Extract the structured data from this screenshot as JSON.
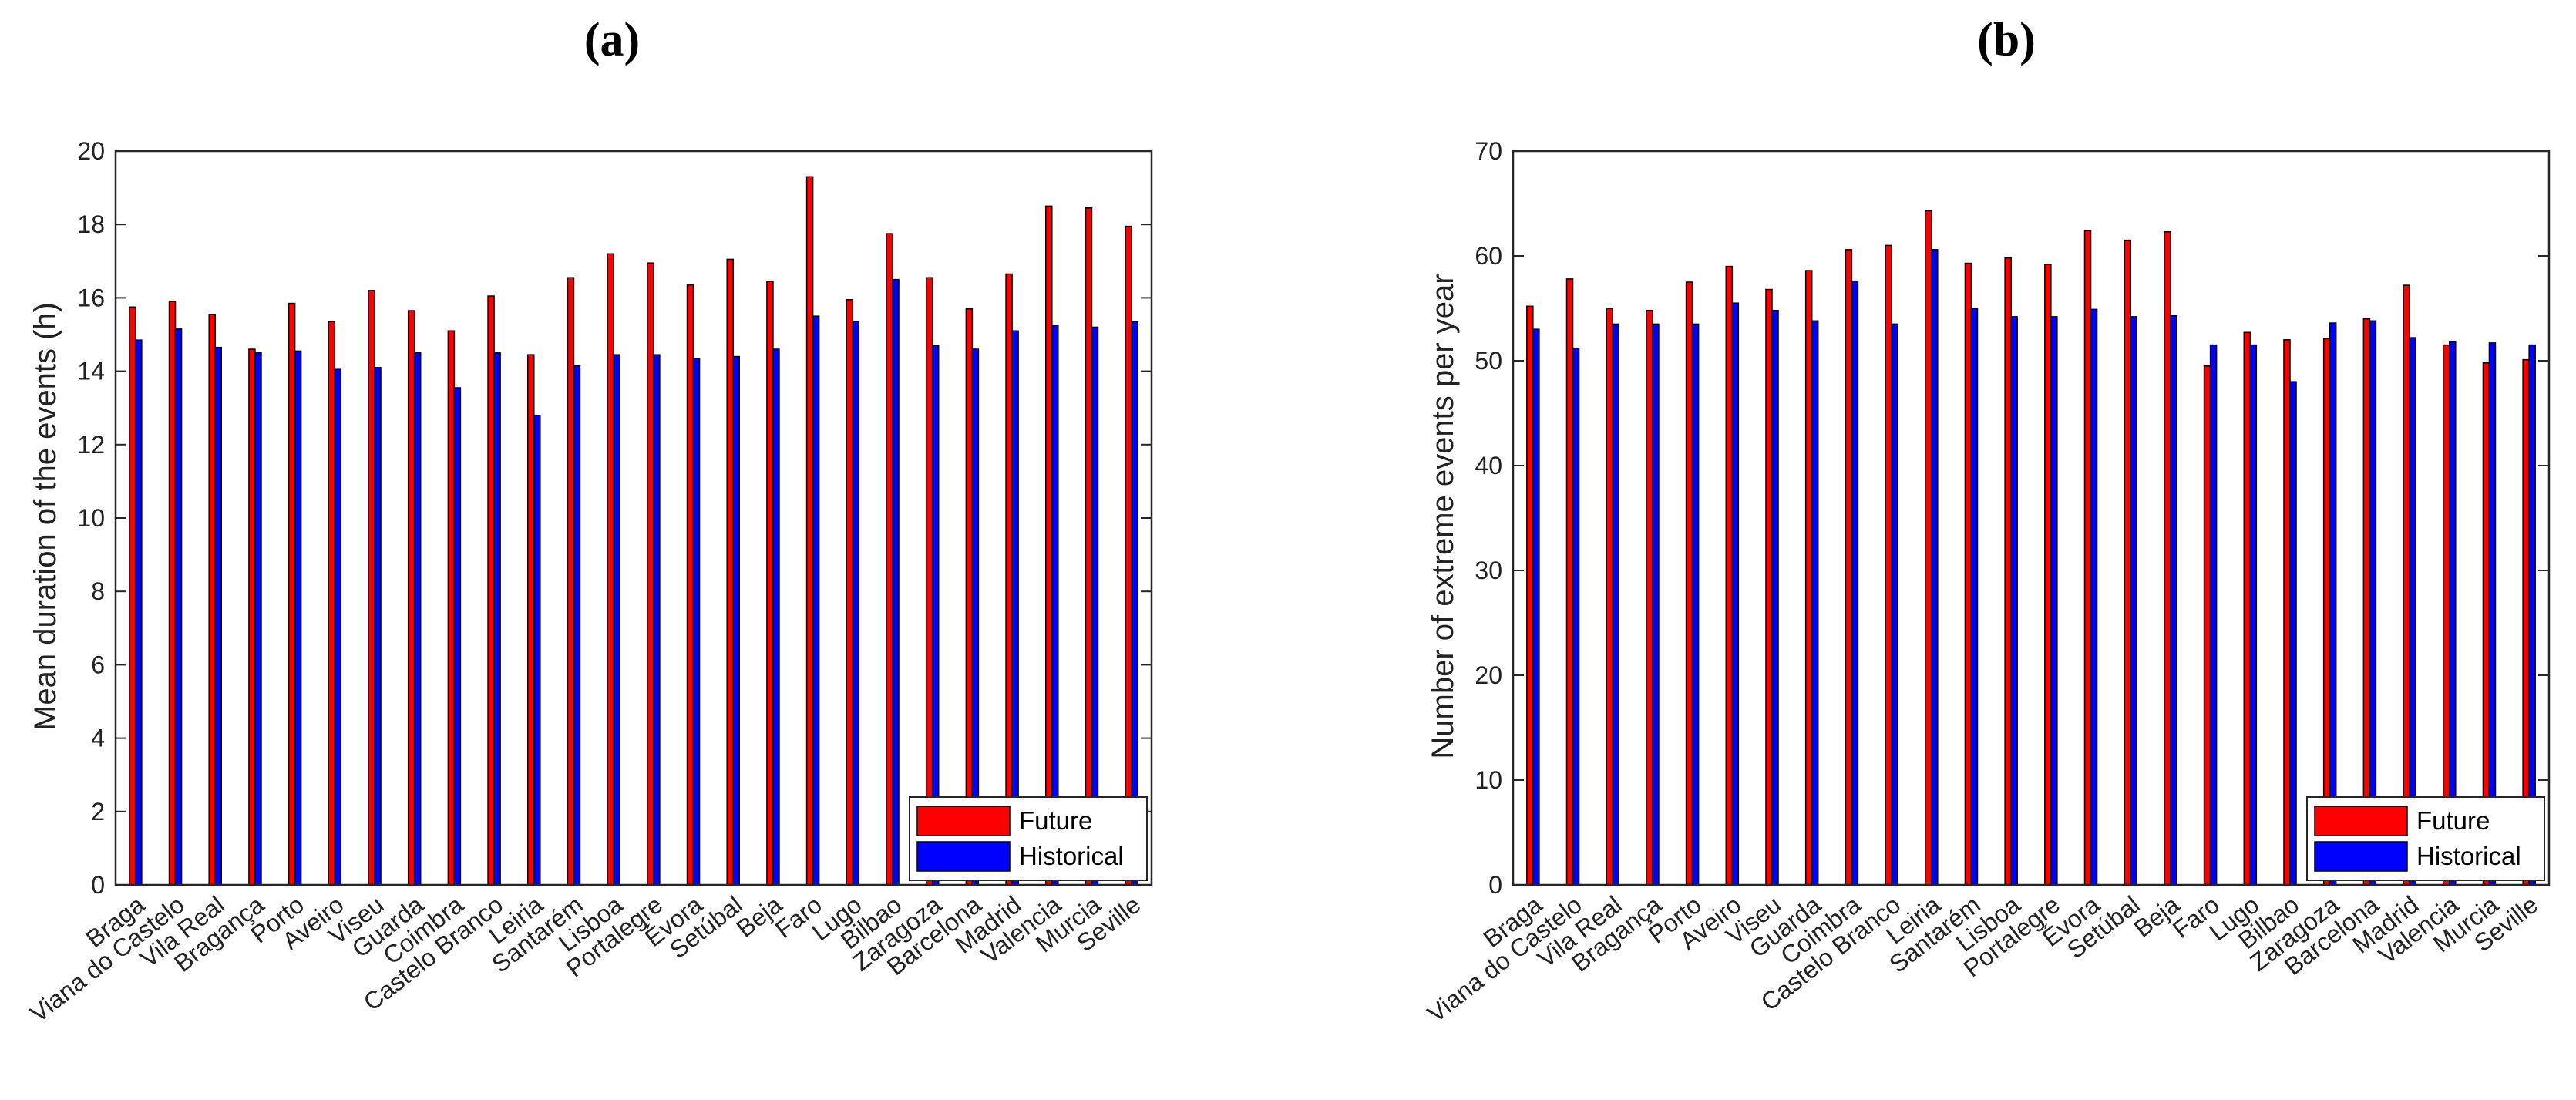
{
  "chart_data": [
    {
      "type": "bar",
      "title": "(a)",
      "ylabel": "Mean duration of the events (h)",
      "xlabel": "",
      "ylim": [
        0,
        20
      ],
      "yticks": [
        0,
        2,
        4,
        6,
        8,
        10,
        12,
        14,
        16,
        18,
        20
      ],
      "grid": false,
      "legend_position": "bottom-right",
      "categories": [
        "Braga",
        "Viana do Castelo",
        "Vila Real",
        "Bragança",
        "Porto",
        "Aveiro",
        "Viseu",
        "Guarda",
        "Coimbra",
        "Castelo Branco",
        "Leiria",
        "Santarém",
        "Lisboa",
        "Portalegre",
        "Évora",
        "Setúbal",
        "Beja",
        "Faro",
        "Lugo",
        "Bilbao",
        "Zaragoza",
        "Barcelona",
        "Madrid",
        "Valencia",
        "Murcia",
        "Seville"
      ],
      "series": [
        {
          "name": "Future",
          "color": "#ff0000",
          "values": [
            15.75,
            15.9,
            15.55,
            14.6,
            15.85,
            15.35,
            16.2,
            15.65,
            15.1,
            16.05,
            14.45,
            16.55,
            17.2,
            16.95,
            16.35,
            17.05,
            16.45,
            19.3,
            15.95,
            17.75,
            16.55,
            15.7,
            16.65,
            18.5,
            18.45,
            17.95
          ]
        },
        {
          "name": "Historical",
          "color": "#0000ff",
          "values": [
            14.85,
            15.15,
            14.65,
            14.5,
            14.55,
            14.05,
            14.1,
            14.5,
            13.55,
            14.5,
            12.8,
            14.15,
            14.45,
            14.45,
            14.35,
            14.4,
            14.6,
            15.5,
            15.35,
            16.5,
            14.7,
            14.6,
            15.1,
            15.25,
            15.2,
            15.35
          ]
        }
      ]
    },
    {
      "type": "bar",
      "title": "(b)",
      "ylabel": "Number of extreme events per year",
      "xlabel": "",
      "ylim": [
        0,
        70
      ],
      "yticks": [
        0,
        10,
        20,
        30,
        40,
        50,
        60,
        70
      ],
      "grid": false,
      "legend_position": "bottom-right",
      "categories": [
        "Braga",
        "Viana do Castelo",
        "Vila Real",
        "Bragança",
        "Porto",
        "Aveiro",
        "Viseu",
        "Guarda",
        "Coimbra",
        "Castelo Branco",
        "Leiria",
        "Santarém",
        "Lisboa",
        "Portalegre",
        "Évora",
        "Setúbal",
        "Beja",
        "Faro",
        "Lugo",
        "Bilbao",
        "Zaragoza",
        "Barcelona",
        "Madrid",
        "Valencia",
        "Murcia",
        "Seville"
      ],
      "series": [
        {
          "name": "Future",
          "color": "#ff0000",
          "values": [
            55.2,
            57.8,
            55.0,
            54.8,
            57.5,
            59.0,
            56.8,
            58.6,
            60.6,
            61.0,
            64.3,
            59.3,
            59.8,
            59.2,
            62.4,
            61.5,
            62.3,
            49.5,
            52.7,
            52.0,
            52.1,
            54.0,
            57.2,
            51.5,
            49.8,
            50.1
          ]
        },
        {
          "name": "Historical",
          "color": "#0000ff",
          "values": [
            53.0,
            51.2,
            53.5,
            53.5,
            53.5,
            55.5,
            54.8,
            53.8,
            57.6,
            53.5,
            60.6,
            55.0,
            54.2,
            54.2,
            54.9,
            54.2,
            54.3,
            51.5,
            51.5,
            48.0,
            53.6,
            53.8,
            52.2,
            51.8,
            51.7,
            51.5
          ]
        }
      ]
    }
  ]
}
